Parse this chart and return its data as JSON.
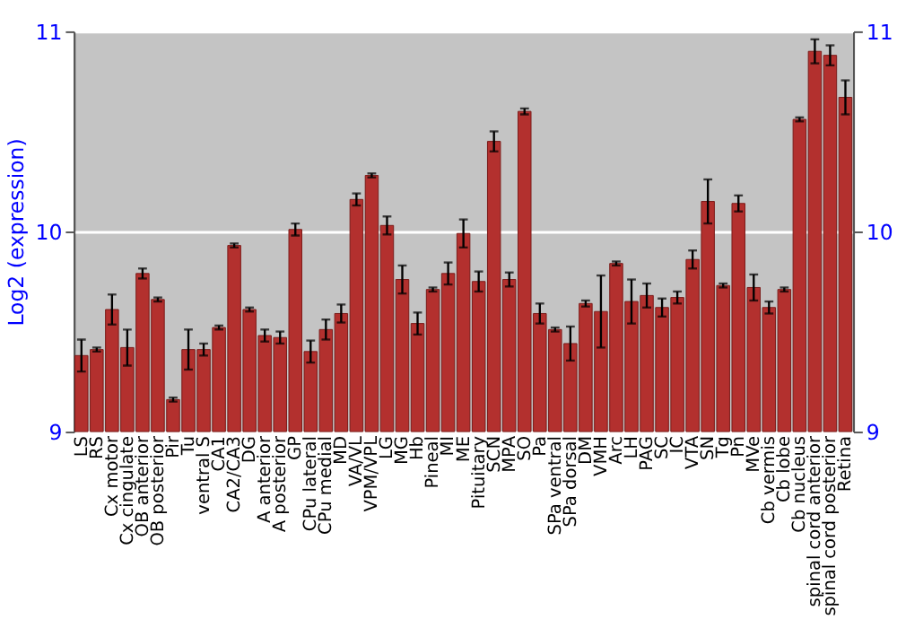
{
  "chart_data": {
    "type": "bar",
    "ylabel": "Log2 (expression)",
    "categories": [
      "LS",
      "RS",
      "Cx motor",
      "Cx cingulate",
      "OB anterior",
      "OB posterior",
      "Pir",
      "Tu",
      "ventral S",
      "CA1",
      "CA2/CA3",
      "DG",
      "A anterior",
      "A posterior",
      "GP",
      "CPu lateral",
      "CPu medial",
      "MD",
      "VA/VL",
      "VPM/VPL",
      "LG",
      "MG",
      "Hb",
      "Pineal",
      "MI",
      "ME",
      "Pituitary",
      "SCN",
      "MPA",
      "SO",
      "Pa",
      "SPa ventral",
      "SPa dorsal",
      "DM",
      "VMH",
      "Arc",
      "LH",
      "PAG",
      "SC",
      "IC",
      "VTA",
      "SN",
      "Tg",
      "Pn",
      "MVe",
      "Cb vermis",
      "Cb lobe",
      "Cb nucleus",
      "spinal cord anterior",
      "spinal cord posterior",
      "Retina"
    ],
    "values": [
      9.38,
      9.41,
      9.61,
      9.42,
      9.79,
      9.66,
      9.16,
      9.41,
      9.41,
      9.52,
      9.93,
      9.61,
      9.48,
      9.47,
      10.01,
      9.4,
      9.51,
      9.59,
      10.16,
      10.28,
      10.03,
      9.76,
      9.54,
      9.71,
      9.79,
      9.99,
      9.75,
      10.45,
      9.76,
      10.6,
      9.59,
      9.51,
      9.44,
      9.64,
      9.6,
      9.84,
      9.65,
      9.68,
      9.62,
      9.67,
      9.86,
      10.15,
      9.73,
      10.14,
      9.72,
      9.62,
      9.71,
      10.56,
      10.9,
      10.88,
      10.67
    ],
    "errors": [
      0.08,
      0.01,
      0.075,
      0.09,
      0.025,
      0.01,
      0.01,
      0.1,
      0.03,
      0.01,
      0.01,
      0.01,
      0.03,
      0.03,
      0.03,
      0.055,
      0.05,
      0.045,
      0.03,
      0.01,
      0.045,
      0.07,
      0.055,
      0.01,
      0.055,
      0.07,
      0.05,
      0.05,
      0.035,
      0.015,
      0.05,
      0.01,
      0.085,
      0.015,
      0.18,
      0.01,
      0.11,
      0.06,
      0.045,
      0.03,
      0.045,
      0.11,
      0.01,
      0.04,
      0.065,
      0.03,
      0.01,
      0.01,
      0.06,
      0.05,
      0.085
    ],
    "color": "#b3302e",
    "ylim": [
      9,
      11
    ],
    "yticks": [
      9,
      10,
      11
    ],
    "y2lim": [
      9,
      11
    ],
    "y2ticks": [
      9,
      10,
      11
    ],
    "grid": "y"
  }
}
